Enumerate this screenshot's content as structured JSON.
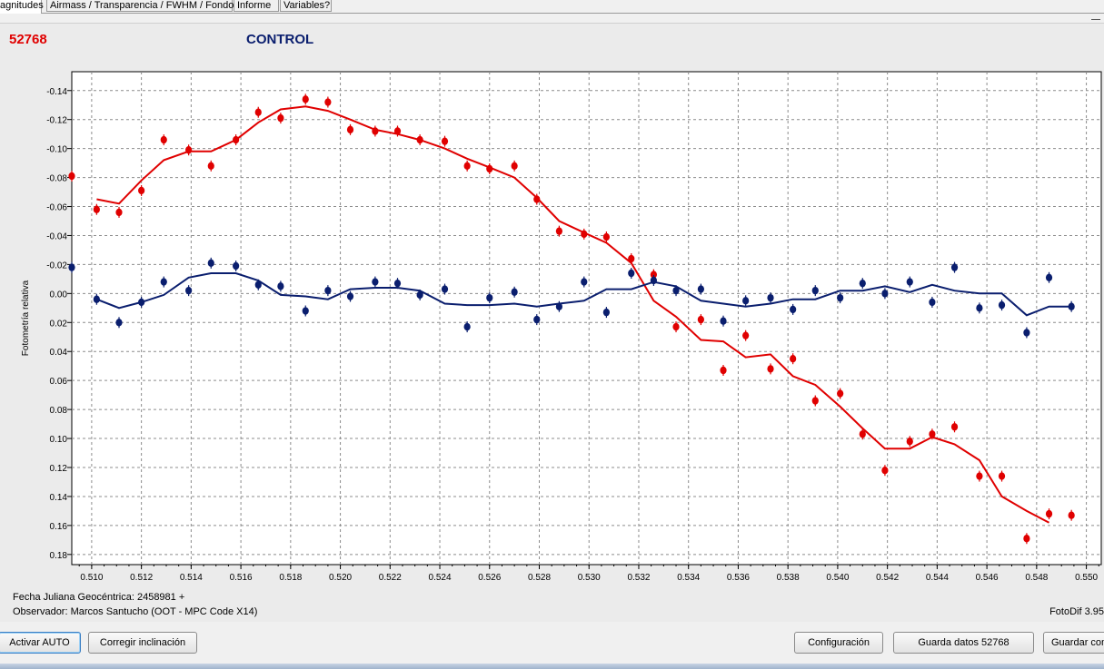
{
  "tabs": [
    {
      "label": "agnitudes",
      "active": true
    },
    {
      "label": "Airmass / Transparencia / FWHM / Fondo",
      "active": false
    },
    {
      "label": "Informe",
      "active": false
    },
    {
      "label": "Variables?",
      "active": false
    }
  ],
  "header": {
    "object_id": "52768",
    "control": "CONTROL"
  },
  "colors": {
    "object": "#e00000",
    "control": "#0a1e6e",
    "plot_bg": "#ffffff",
    "grid": "#8c8c8c"
  },
  "info": {
    "julian_date": "Fecha Juliana Geocéntrica: 2458981 +",
    "observer": "Observador: Marcos Santucho (OOT - MPC Code X14)",
    "version": "FotoDif 3.95"
  },
  "buttons": {
    "auto": "Activar AUTO",
    "tilt": "Corregir inclinación",
    "config": "Configuración",
    "save_data": "Guarda datos 52768",
    "save_other": "Guardar con"
  },
  "chart_data": {
    "type": "scatter",
    "ylabel": "Fotometría relativa",
    "xlabel": "",
    "xlim": [
      0.5092,
      0.5506
    ],
    "ylim": [
      -0.153,
      0.187
    ],
    "y_inverted": true,
    "grid": true,
    "x_ticks": [
      "0.510",
      "0.512",
      "0.514",
      "0.516",
      "0.518",
      "0.520",
      "0.522",
      "0.524",
      "0.526",
      "0.528",
      "0.530",
      "0.532",
      "0.534",
      "0.536",
      "0.538",
      "0.540",
      "0.542",
      "0.544",
      "0.546",
      "0.548",
      "0.550"
    ],
    "y_ticks": [
      "-0.14",
      "-0.12",
      "-0.10",
      "-0.08",
      "-0.06",
      "-0.04",
      "-0.02",
      "0.00",
      "0.02",
      "0.04",
      "0.06",
      "0.08",
      "0.10",
      "0.12",
      "0.14",
      "0.16",
      "0.18"
    ],
    "series": [
      {
        "role": "object",
        "points": [
          [
            0.5092,
            -0.081
          ],
          [
            0.5102,
            -0.058
          ],
          [
            0.5111,
            -0.056
          ],
          [
            0.512,
            -0.071
          ],
          [
            0.5129,
            -0.106
          ],
          [
            0.5139,
            -0.099
          ],
          [
            0.5148,
            -0.088
          ],
          [
            0.5158,
            -0.106
          ],
          [
            0.5167,
            -0.125
          ],
          [
            0.5176,
            -0.121
          ],
          [
            0.5186,
            -0.134
          ],
          [
            0.5195,
            -0.132
          ],
          [
            0.5204,
            -0.113
          ],
          [
            0.5214,
            -0.112
          ],
          [
            0.5223,
            -0.112
          ],
          [
            0.5232,
            -0.106
          ],
          [
            0.5242,
            -0.105
          ],
          [
            0.5251,
            -0.088
          ],
          [
            0.526,
            -0.086
          ],
          [
            0.527,
            -0.088
          ],
          [
            0.5279,
            -0.065
          ],
          [
            0.5288,
            -0.043
          ],
          [
            0.5298,
            -0.041
          ],
          [
            0.5307,
            -0.039
          ],
          [
            0.5317,
            -0.024
          ],
          [
            0.5326,
            -0.013
          ],
          [
            0.5335,
            0.023
          ],
          [
            0.5345,
            0.018
          ],
          [
            0.5354,
            0.053
          ],
          [
            0.5363,
            0.029
          ],
          [
            0.5373,
            0.052
          ],
          [
            0.5382,
            0.045
          ],
          [
            0.5391,
            0.074
          ],
          [
            0.5401,
            0.069
          ],
          [
            0.541,
            0.097
          ],
          [
            0.5419,
            0.122
          ],
          [
            0.5429,
            0.102
          ],
          [
            0.5438,
            0.097
          ],
          [
            0.5447,
            0.092
          ],
          [
            0.5457,
            0.126
          ],
          [
            0.5466,
            0.126
          ],
          [
            0.5476,
            0.169
          ],
          [
            0.5485,
            0.152
          ],
          [
            0.5494,
            0.153
          ]
        ],
        "trend": [
          [
            0.5102,
            -0.065
          ],
          [
            0.5111,
            -0.062
          ],
          [
            0.512,
            -0.078
          ],
          [
            0.5129,
            -0.092
          ],
          [
            0.5139,
            -0.098
          ],
          [
            0.5148,
            -0.098
          ],
          [
            0.5158,
            -0.106
          ],
          [
            0.5167,
            -0.118
          ],
          [
            0.5176,
            -0.127
          ],
          [
            0.5186,
            -0.129
          ],
          [
            0.5195,
            -0.126
          ],
          [
            0.5204,
            -0.12
          ],
          [
            0.5214,
            -0.113
          ],
          [
            0.5223,
            -0.11
          ],
          [
            0.5232,
            -0.106
          ],
          [
            0.5242,
            -0.1
          ],
          [
            0.5251,
            -0.093
          ],
          [
            0.526,
            -0.087
          ],
          [
            0.527,
            -0.08
          ],
          [
            0.5279,
            -0.066
          ],
          [
            0.5288,
            -0.05
          ],
          [
            0.5298,
            -0.042
          ],
          [
            0.5307,
            -0.035
          ],
          [
            0.5317,
            -0.021
          ],
          [
            0.5326,
            0.005
          ],
          [
            0.5335,
            0.016
          ],
          [
            0.5345,
            0.032
          ],
          [
            0.5354,
            0.033
          ],
          [
            0.5363,
            0.044
          ],
          [
            0.5373,
            0.042
          ],
          [
            0.5382,
            0.057
          ],
          [
            0.5391,
            0.063
          ],
          [
            0.5401,
            0.078
          ],
          [
            0.541,
            0.093
          ],
          [
            0.5419,
            0.107
          ],
          [
            0.5429,
            0.107
          ],
          [
            0.5438,
            0.099
          ],
          [
            0.5447,
            0.104
          ],
          [
            0.5457,
            0.115
          ],
          [
            0.5466,
            0.14
          ],
          [
            0.5476,
            0.15
          ],
          [
            0.5485,
            0.158
          ]
        ]
      },
      {
        "role": "control",
        "points": [
          [
            0.5092,
            -0.018
          ],
          [
            0.5102,
            0.004
          ],
          [
            0.5111,
            0.02
          ],
          [
            0.512,
            0.006
          ],
          [
            0.5129,
            -0.008
          ],
          [
            0.5139,
            -0.002
          ],
          [
            0.5148,
            -0.021
          ],
          [
            0.5158,
            -0.019
          ],
          [
            0.5167,
            -0.006
          ],
          [
            0.5176,
            -0.005
          ],
          [
            0.5186,
            0.012
          ],
          [
            0.5195,
            -0.002
          ],
          [
            0.5204,
            0.002
          ],
          [
            0.5214,
            -0.008
          ],
          [
            0.5223,
            -0.007
          ],
          [
            0.5232,
            0.001
          ],
          [
            0.5242,
            -0.003
          ],
          [
            0.5251,
            0.023
          ],
          [
            0.526,
            0.003
          ],
          [
            0.527,
            -0.001
          ],
          [
            0.5279,
            0.018
          ],
          [
            0.5288,
            0.009
          ],
          [
            0.5298,
            -0.008
          ],
          [
            0.5307,
            0.013
          ],
          [
            0.5317,
            -0.014
          ],
          [
            0.5326,
            -0.009
          ],
          [
            0.5335,
            -0.002
          ],
          [
            0.5345,
            -0.003
          ],
          [
            0.5354,
            0.019
          ],
          [
            0.5363,
            0.005
          ],
          [
            0.5373,
            0.003
          ],
          [
            0.5382,
            0.011
          ],
          [
            0.5391,
            -0.002
          ],
          [
            0.5401,
            0.003
          ],
          [
            0.541,
            -0.007
          ],
          [
            0.5419,
            0.0
          ],
          [
            0.5429,
            -0.008
          ],
          [
            0.5438,
            0.006
          ],
          [
            0.5447,
            -0.018
          ],
          [
            0.5457,
            0.01
          ],
          [
            0.5466,
            0.008
          ],
          [
            0.5476,
            0.027
          ],
          [
            0.5485,
            -0.011
          ],
          [
            0.5494,
            0.009
          ]
        ],
        "trend": [
          [
            0.5102,
            0.004
          ],
          [
            0.5111,
            0.01
          ],
          [
            0.512,
            0.006
          ],
          [
            0.5129,
            0.001
          ],
          [
            0.5139,
            -0.011
          ],
          [
            0.5148,
            -0.014
          ],
          [
            0.5158,
            -0.014
          ],
          [
            0.5167,
            -0.009
          ],
          [
            0.5176,
            0.001
          ],
          [
            0.5186,
            0.002
          ],
          [
            0.5195,
            0.004
          ],
          [
            0.5204,
            -0.003
          ],
          [
            0.5214,
            -0.004
          ],
          [
            0.5223,
            -0.004
          ],
          [
            0.5232,
            -0.002
          ],
          [
            0.5242,
            0.007
          ],
          [
            0.5251,
            0.008
          ],
          [
            0.526,
            0.008
          ],
          [
            0.527,
            0.007
          ],
          [
            0.5279,
            0.009
          ],
          [
            0.5288,
            0.007
          ],
          [
            0.5298,
            0.005
          ],
          [
            0.5307,
            -0.003
          ],
          [
            0.5317,
            -0.003
          ],
          [
            0.5326,
            -0.008
          ],
          [
            0.5335,
            -0.005
          ],
          [
            0.5345,
            0.005
          ],
          [
            0.5354,
            0.007
          ],
          [
            0.5363,
            0.009
          ],
          [
            0.5373,
            0.007
          ],
          [
            0.5382,
            0.004
          ],
          [
            0.5391,
            0.004
          ],
          [
            0.5401,
            -0.002
          ],
          [
            0.541,
            -0.002
          ],
          [
            0.5419,
            -0.005
          ],
          [
            0.5429,
            -0.001
          ],
          [
            0.5438,
            -0.006
          ],
          [
            0.5447,
            -0.002
          ],
          [
            0.5457,
            0.0
          ],
          [
            0.5466,
            0.0
          ],
          [
            0.5476,
            0.015
          ],
          [
            0.5485,
            0.009
          ],
          [
            0.5494,
            0.009
          ]
        ]
      }
    ]
  }
}
